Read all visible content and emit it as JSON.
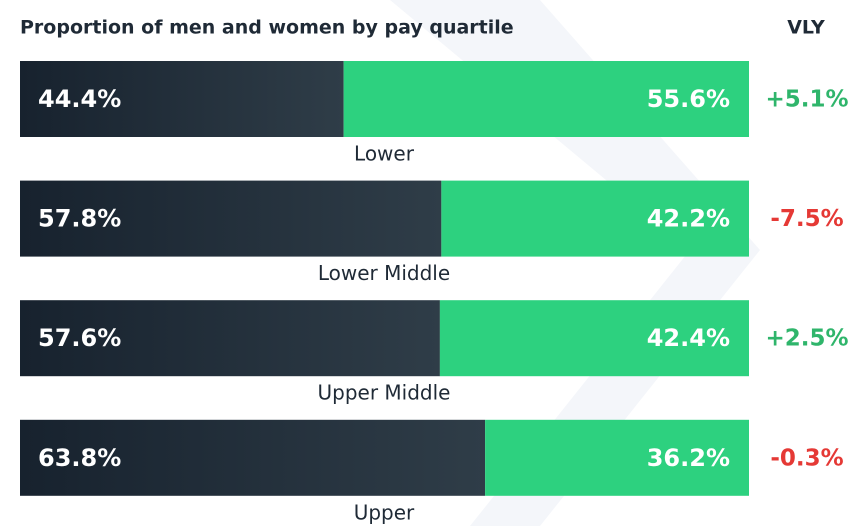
{
  "chart_data": {
    "type": "stacked_bar_horizontal",
    "title": "Proportion of men and women by pay quartile",
    "change_header": "VLY",
    "categories": [
      "Lower",
      "Lower Middle",
      "Upper Middle",
      "Upper"
    ],
    "xlim": [
      0,
      100
    ],
    "series": [
      {
        "color": "#1e2a36",
        "values": [
          44.4,
          57.8,
          57.6,
          63.8
        ],
        "value_labels": [
          "44.4%",
          "57.8%",
          "57.6%",
          "63.8%"
        ]
      },
      {
        "color": "#2dd17f",
        "values": [
          55.6,
          42.2,
          42.4,
          36.2
        ],
        "value_labels": [
          "55.6%",
          "42.2%",
          "42.4%",
          "36.2%"
        ]
      }
    ],
    "changes": {
      "values": [
        5.1,
        -7.5,
        2.5,
        -0.3
      ],
      "value_labels": [
        "+5.1%",
        "-7.5%",
        "+2.5%",
        "-0.3%"
      ],
      "positive_color": "#2fb56b",
      "negative_color": "#e53935"
    }
  }
}
